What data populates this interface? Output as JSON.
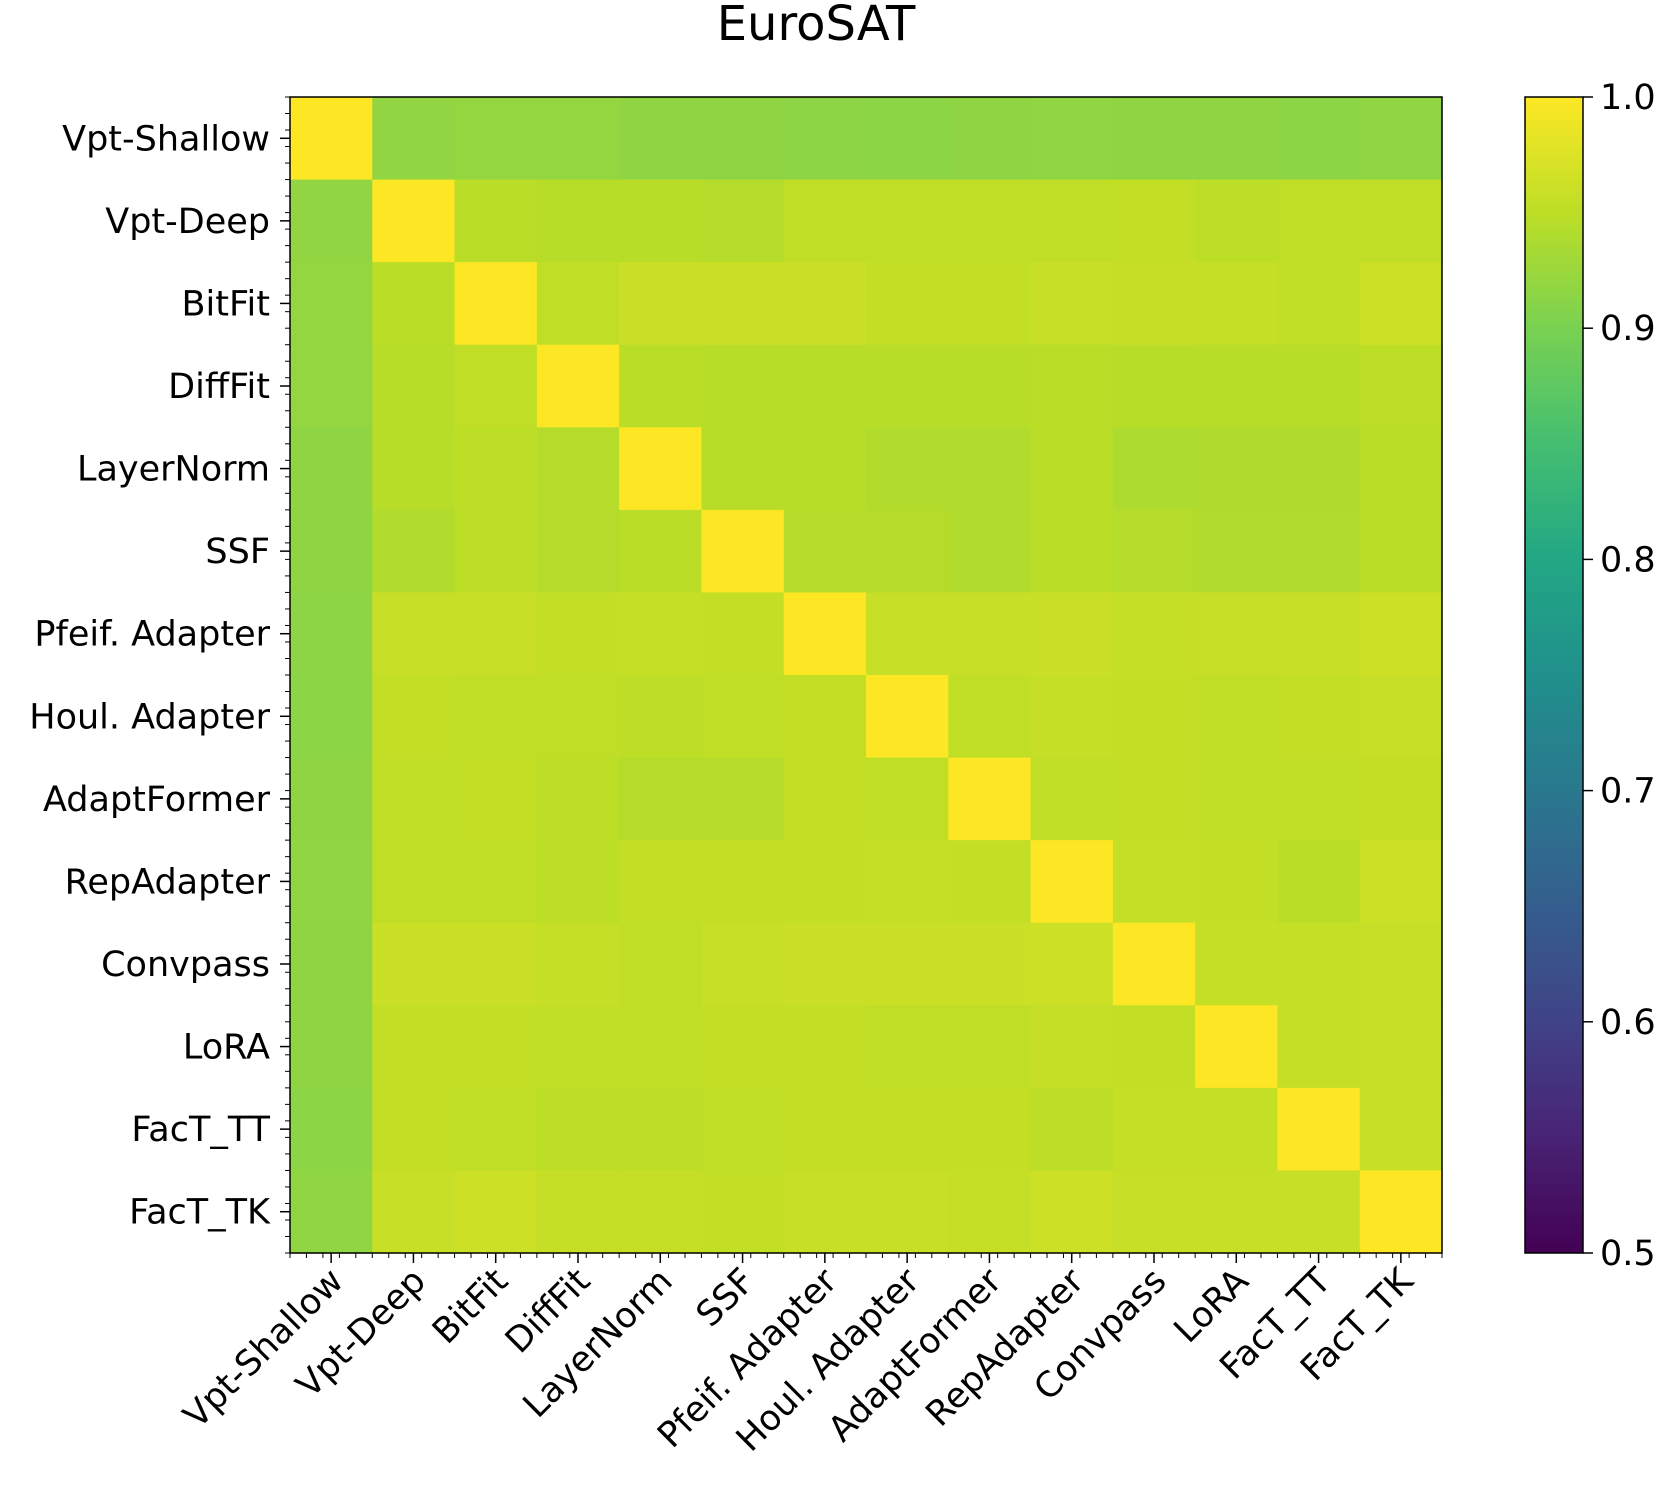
{
  "chart_data": {
    "type": "heatmap",
    "title": "EuroSAT",
    "row_labels": [
      "Vpt-Shallow",
      "Vpt-Deep",
      "BitFit",
      "DiffFit",
      "LayerNorm",
      "SSF",
      "Pfeif. Adapter",
      "Houl. Adapter",
      "AdaptFormer",
      "RepAdapter",
      "Convpass",
      "LoRA",
      "FacT_TT",
      "FacT_TK"
    ],
    "col_labels": [
      "Vpt-Shallow",
      "Vpt-Deep",
      "BitFit",
      "DiffFit",
      "LayerNorm",
      "SSF",
      "Pfeif. Adapter",
      "Houl. Adapter",
      "AdaptFormer",
      "RepAdapter",
      "Convpass",
      "LoRA",
      "FacT_TT",
      "FacT_TK"
    ],
    "values": [
      [
        1.0,
        0.918,
        0.92,
        0.92,
        0.916,
        0.916,
        0.915,
        0.914,
        0.916,
        0.917,
        0.916,
        0.916,
        0.914,
        0.917
      ],
      [
        0.918,
        1.0,
        0.948,
        0.946,
        0.946,
        0.944,
        0.952,
        0.952,
        0.952,
        0.952,
        0.954,
        0.95,
        0.952,
        0.952
      ],
      [
        0.92,
        0.948,
        1.0,
        0.952,
        0.96,
        0.96,
        0.96,
        0.954,
        0.954,
        0.958,
        0.957,
        0.956,
        0.952,
        0.962
      ],
      [
        0.92,
        0.946,
        0.952,
        1.0,
        0.948,
        0.946,
        0.946,
        0.946,
        0.946,
        0.948,
        0.946,
        0.946,
        0.946,
        0.95
      ],
      [
        0.916,
        0.946,
        0.95,
        0.944,
        1.0,
        0.946,
        0.946,
        0.942,
        0.942,
        0.948,
        0.938,
        0.94,
        0.94,
        0.948
      ],
      [
        0.916,
        0.942,
        0.95,
        0.944,
        0.948,
        1.0,
        0.944,
        0.944,
        0.942,
        0.948,
        0.944,
        0.942,
        0.942,
        0.948
      ],
      [
        0.915,
        0.958,
        0.958,
        0.954,
        0.956,
        0.954,
        1.0,
        0.958,
        0.958,
        0.96,
        0.956,
        0.958,
        0.958,
        0.962
      ],
      [
        0.914,
        0.954,
        0.952,
        0.952,
        0.95,
        0.952,
        0.954,
        1.0,
        0.952,
        0.956,
        0.954,
        0.952,
        0.954,
        0.958
      ],
      [
        0.916,
        0.952,
        0.954,
        0.95,
        0.944,
        0.944,
        0.954,
        0.952,
        1.0,
        0.952,
        0.954,
        0.952,
        0.952,
        0.954
      ],
      [
        0.917,
        0.952,
        0.952,
        0.95,
        0.954,
        0.954,
        0.954,
        0.956,
        0.954,
        1.0,
        0.956,
        0.954,
        0.948,
        0.962
      ],
      [
        0.916,
        0.96,
        0.96,
        0.956,
        0.952,
        0.958,
        0.96,
        0.96,
        0.96,
        0.962,
        1.0,
        0.956,
        0.956,
        0.958
      ],
      [
        0.916,
        0.954,
        0.954,
        0.952,
        0.952,
        0.954,
        0.954,
        0.952,
        0.952,
        0.956,
        0.954,
        1.0,
        0.956,
        0.958
      ],
      [
        0.914,
        0.954,
        0.952,
        0.95,
        0.95,
        0.952,
        0.954,
        0.954,
        0.954,
        0.95,
        0.956,
        0.956,
        1.0,
        0.958
      ],
      [
        0.917,
        0.958,
        0.962,
        0.956,
        0.956,
        0.954,
        0.958,
        0.958,
        0.956,
        0.962,
        0.958,
        0.958,
        0.958,
        1.0
      ]
    ],
    "vmin": 0.5,
    "vmax": 1.0,
    "colormap": "viridis",
    "colorbar_ticks": [
      "0.5",
      "0.6",
      "0.7",
      "0.8",
      "0.9",
      "1.0"
    ],
    "xlabel": "",
    "ylabel": ""
  }
}
